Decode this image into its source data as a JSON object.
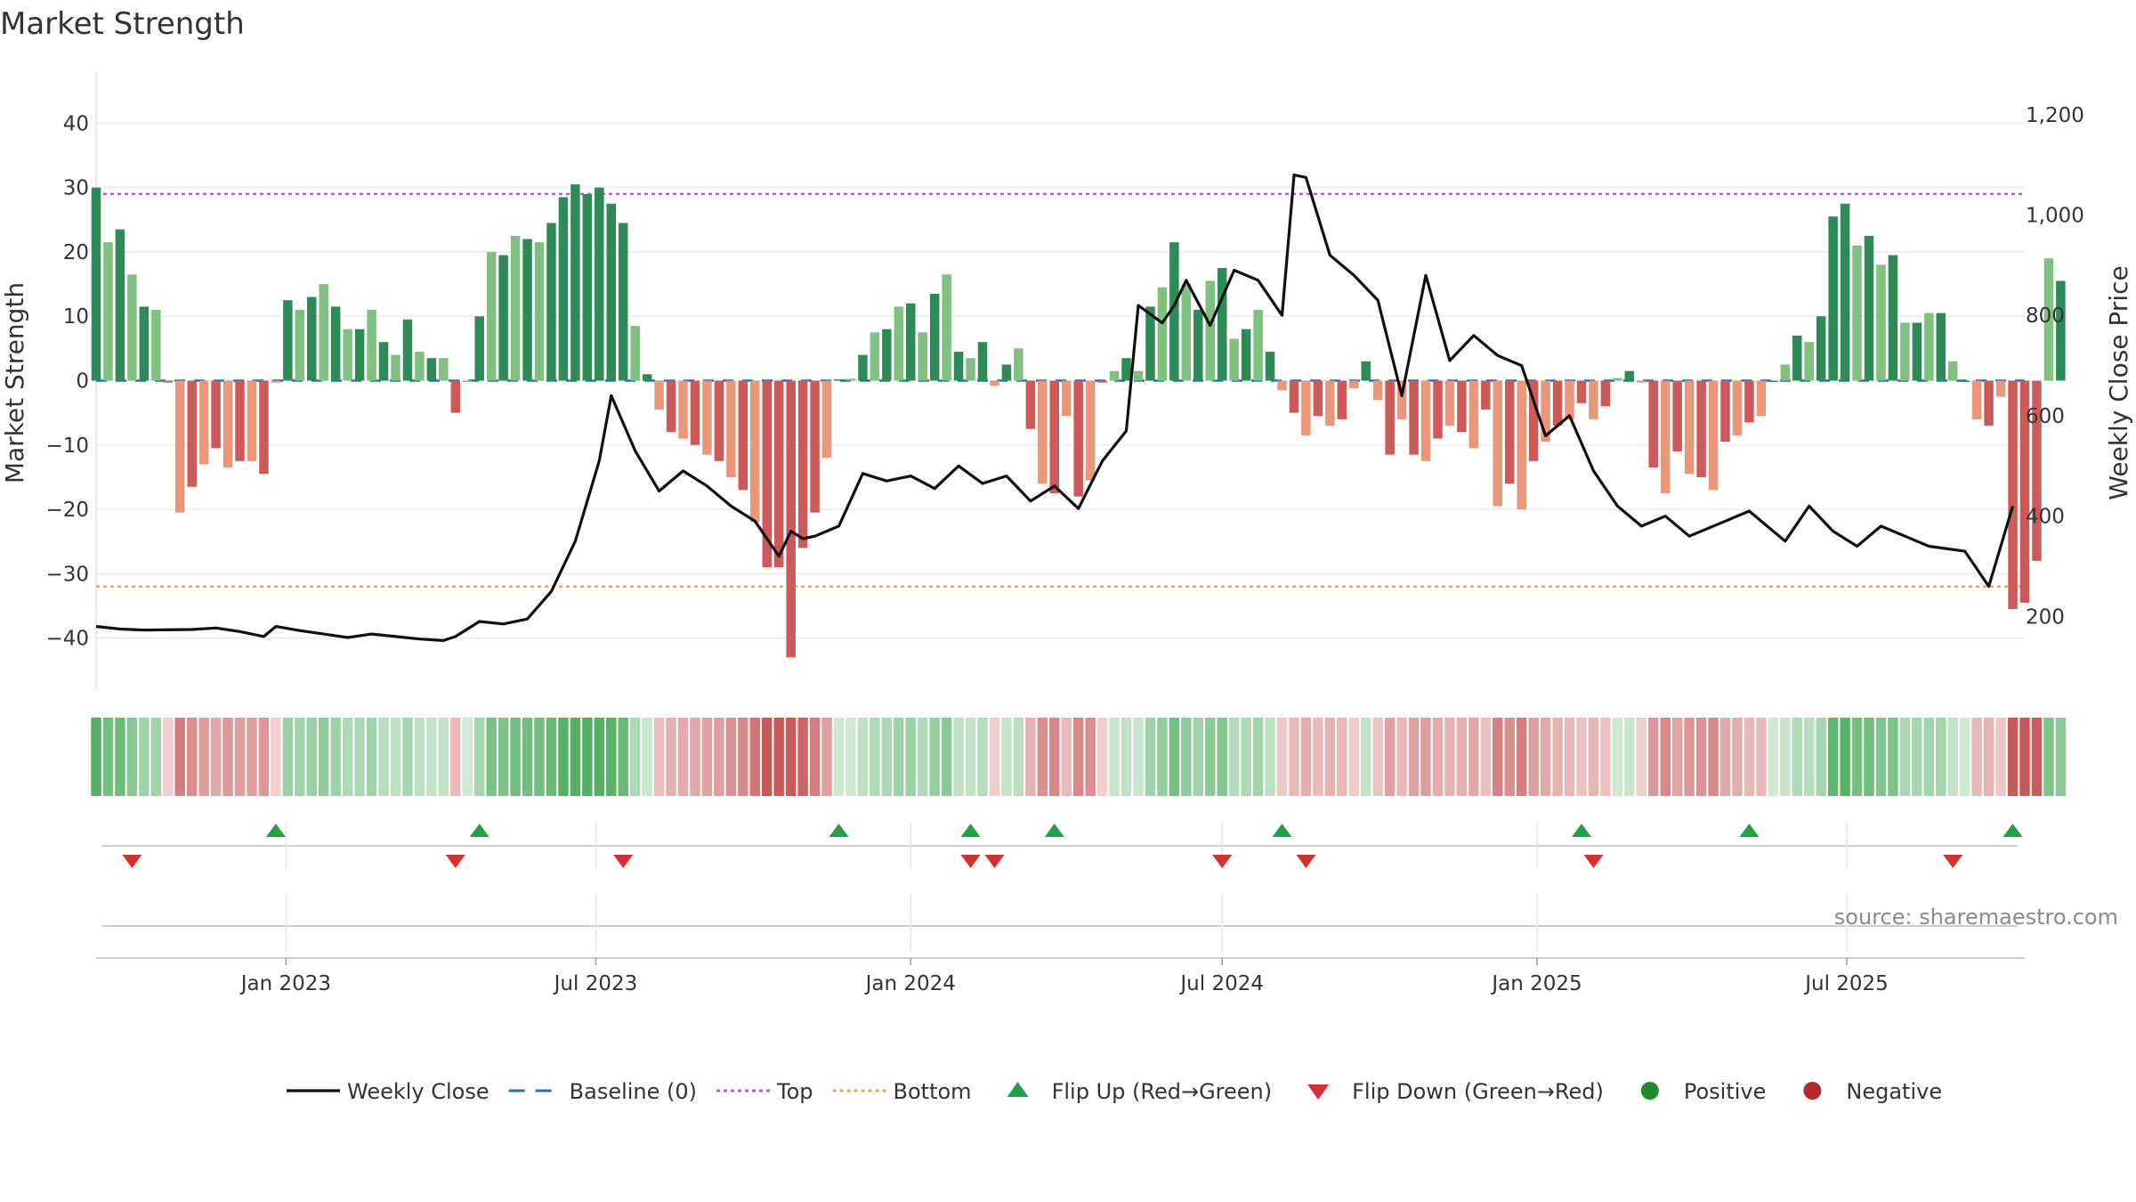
{
  "chart_data": {
    "type": "bar",
    "title": "Market Strength",
    "ylabel": "Market Strength",
    "y2label": "Weekly Close Price",
    "ylim": [
      -46,
      46
    ],
    "y2lim": [
      80,
      1260
    ],
    "yticks": [
      40,
      30,
      20,
      10,
      0,
      -10,
      -20,
      -30,
      -40
    ],
    "ytick_labels": [
      "40",
      "30",
      "20",
      "10",
      "0",
      "−10",
      "−20",
      "−30",
      "−40"
    ],
    "y2ticks": [
      1200,
      1000,
      800,
      600,
      400,
      200
    ],
    "y2tick_labels": [
      "1,200",
      "1,000",
      "800",
      "600",
      "400",
      "200"
    ],
    "x_start": "2022-09-12",
    "x_end": "2025-10-13",
    "xticks": [
      "2023-01-01",
      "2023-07-01",
      "2024-01-01",
      "2024-07-01",
      "2025-01-01",
      "2025-07-01"
    ],
    "xtick_labels": [
      "Jan 2023",
      "Jul 2023",
      "Jan 2024",
      "Jul 2024",
      "Jan 2025",
      "Jul 2025"
    ],
    "top_line": 29,
    "bottom_line": -32,
    "baseline": 0,
    "source": "source: sharemaestro.com",
    "grid": true,
    "legend_position": "bottom",
    "series": [
      {
        "name": "Market Strength",
        "kind": "bar",
        "x_start": "2022-09-12",
        "interval_days": 7,
        "values": [
          30,
          21.5,
          23.5,
          16.5,
          11.5,
          11,
          -0.3,
          -20.5,
          -16.5,
          -13,
          -10.5,
          -13.5,
          -12.5,
          -12.5,
          -14.5,
          -0.3,
          12.5,
          11,
          13,
          15,
          11.5,
          8,
          8,
          11,
          6,
          4,
          9.5,
          4.5,
          3.5,
          3.5,
          -5,
          0,
          10,
          20,
          19.5,
          22.5,
          22,
          21.5,
          24.5,
          28.5,
          30.5,
          29,
          30,
          27.5,
          24.5,
          8.5,
          1,
          -4.5,
          -8,
          -9,
          -10,
          -11.5,
          -12.5,
          -15,
          -17,
          -22,
          -29,
          -29,
          -43,
          -26,
          -20.5,
          -12,
          0.2,
          0.3,
          4,
          7.5,
          8,
          11.5,
          12,
          7.5,
          13.5,
          16.5,
          4.5,
          3.5,
          6,
          -0.8,
          2.5,
          5,
          -7.5,
          -16,
          -17.5,
          -5.5,
          -18,
          -15.5,
          -0.3,
          1.5,
          3.5,
          1.5,
          11.5,
          14.5,
          21.5,
          15,
          11,
          15.5,
          17.5,
          6.5,
          8,
          11,
          4.5,
          -1.5,
          -5,
          -8.5,
          -5.5,
          -7,
          -6,
          -1.2,
          3,
          -3,
          -11.5,
          -6,
          -11.5,
          -12.5,
          -9,
          -7,
          -8,
          -10.5,
          -4.5,
          -19.5,
          -16,
          -20,
          -12.5,
          -9.5,
          -7,
          -6,
          -3.5,
          -6,
          -4,
          0.4,
          1.5,
          -0.3,
          -13.5,
          -17.5,
          -11,
          -14.5,
          -15,
          -17,
          -9.5,
          -8.5,
          -6.5,
          -5.5,
          0,
          2.5,
          7,
          6,
          10,
          25.5,
          27.5,
          21,
          22.5,
          18,
          19.5,
          9,
          9,
          10.5,
          10.5,
          3,
          0,
          -6,
          -7,
          -2.5,
          -35.5,
          -34.5,
          -28,
          19,
          15.5
        ]
      },
      {
        "name": "Weekly Close",
        "kind": "line",
        "color": "#111111",
        "x": [
          "2022-09-12",
          "2022-09-26",
          "2022-10-10",
          "2022-11-07",
          "2022-11-21",
          "2022-12-05",
          "2022-12-19",
          "2022-12-26",
          "2023-01-09",
          "2023-01-23",
          "2023-02-06",
          "2023-02-20",
          "2023-03-06",
          "2023-03-20",
          "2023-04-03",
          "2023-04-10",
          "2023-04-24",
          "2023-05-08",
          "2023-05-22",
          "2023-06-05",
          "2023-06-19",
          "2023-07-03",
          "2023-07-10",
          "2023-07-24",
          "2023-08-07",
          "2023-08-21",
          "2023-09-04",
          "2023-09-18",
          "2023-10-02",
          "2023-10-16",
          "2023-10-23",
          "2023-10-30",
          "2023-11-06",
          "2023-11-20",
          "2023-12-04",
          "2023-12-18",
          "2024-01-01",
          "2024-01-15",
          "2024-01-29",
          "2024-02-12",
          "2024-02-26",
          "2024-03-11",
          "2024-03-25",
          "2024-04-08",
          "2024-04-22",
          "2024-05-06",
          "2024-05-13",
          "2024-05-27",
          "2024-06-03",
          "2024-06-10",
          "2024-06-24",
          "2024-07-08",
          "2024-07-22",
          "2024-08-05",
          "2024-08-12",
          "2024-08-19",
          "2024-09-02",
          "2024-09-16",
          "2024-09-30",
          "2024-10-14",
          "2024-10-28",
          "2024-11-11",
          "2024-11-25",
          "2024-12-09",
          "2024-12-23",
          "2025-01-06",
          "2025-01-20",
          "2025-02-03",
          "2025-02-17",
          "2025-03-03",
          "2025-03-17",
          "2025-03-31",
          "2025-04-21",
          "2025-05-05",
          "2025-05-26",
          "2025-06-09",
          "2025-06-23",
          "2025-07-07",
          "2025-07-21",
          "2025-08-04",
          "2025-08-18",
          "2025-09-08",
          "2025-09-22",
          "2025-10-06"
        ],
        "values": [
          180,
          175,
          173,
          174,
          177,
          170,
          160,
          180,
          172,
          165,
          158,
          165,
          160,
          155,
          152,
          160,
          190,
          185,
          195,
          250,
          350,
          510,
          640,
          530,
          450,
          490,
          460,
          420,
          390,
          320,
          370,
          355,
          360,
          380,
          485,
          470,
          480,
          455,
          500,
          465,
          480,
          430,
          460,
          415,
          510,
          570,
          820,
          785,
          820,
          870,
          780,
          890,
          870,
          800,
          1080,
          1075,
          920,
          880,
          830,
          640,
          880,
          710,
          760,
          720,
          700,
          560,
          600,
          490,
          420,
          380,
          400,
          360,
          390,
          410,
          350,
          420,
          370,
          340,
          380,
          360,
          340,
          330,
          260,
          420
        ]
      }
    ],
    "flips_up": [
      "2022-12-26",
      "2023-04-24",
      "2023-11-20",
      "2024-02-05",
      "2024-03-25",
      "2024-08-05",
      "2025-01-27",
      "2025-05-05",
      "2025-10-06"
    ],
    "flips_down": [
      "2022-10-03",
      "2023-04-10",
      "2023-07-17",
      "2024-02-05",
      "2024-02-19",
      "2024-07-01",
      "2024-08-19",
      "2025-02-03",
      "2025-09-01"
    ],
    "legend": [
      {
        "label": "Weekly Close",
        "symbol": "line",
        "color": "#111111"
      },
      {
        "label": "Baseline (0)",
        "symbol": "dash",
        "color": "#2a6fa6"
      },
      {
        "label": "Top",
        "symbol": "dot",
        "color": "#b060c8"
      },
      {
        "label": "Bottom",
        "symbol": "dot",
        "color": "#f0a060"
      },
      {
        "label": "Flip Up (Red→Green)",
        "symbol": "tri-up",
        "color": "#22a045"
      },
      {
        "label": "Flip Down (Green→Red)",
        "symbol": "tri-down",
        "color": "#d63030"
      },
      {
        "label": "Positive",
        "symbol": "circle",
        "color": "#218a2e"
      },
      {
        "label": "Negative",
        "symbol": "circle",
        "color": "#b02a2a"
      }
    ],
    "colors": {
      "pos_strong": "#2e8b57",
      "pos_light": "#80c080",
      "neg_strong": "#cc5a5a",
      "neg_light": "#e8977a",
      "top": "#b060c8",
      "bottom": "#f0a060",
      "baseline": "#2a6fa6"
    }
  }
}
